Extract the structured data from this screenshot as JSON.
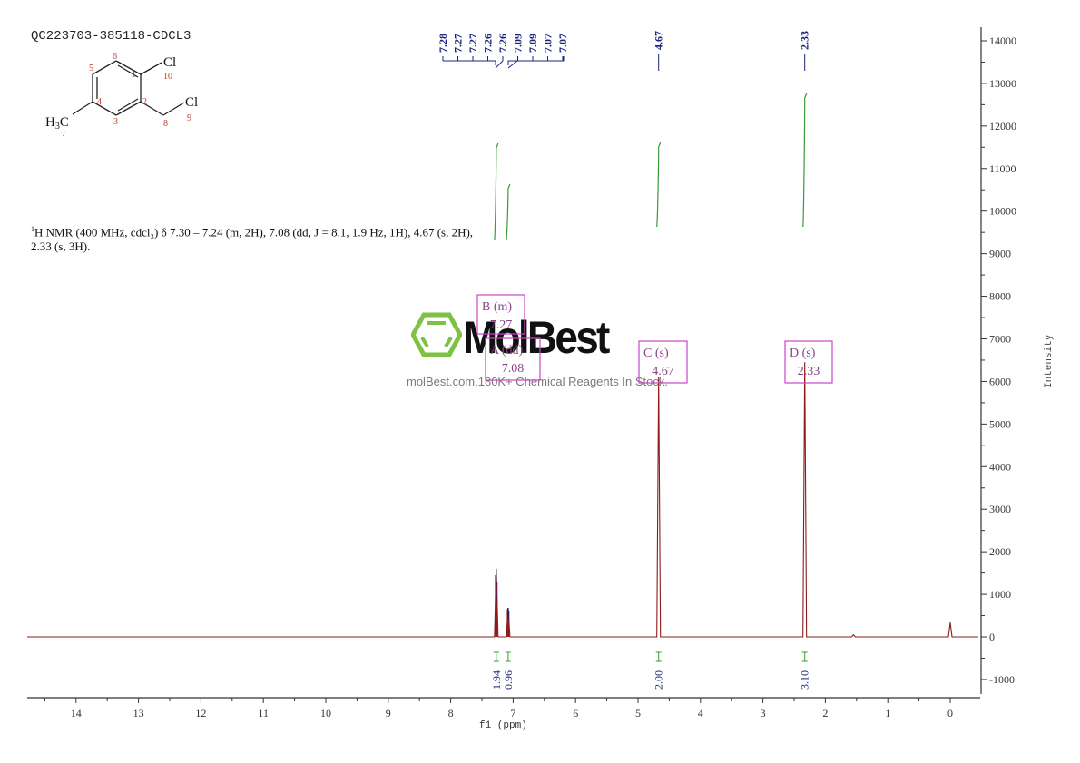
{
  "header": {
    "sample_id": "QC223703-385118-CDCL3",
    "summary_line1": "H NMR (400 MHz, cdcl₃) δ 7.30 – 7.24 (m, 2H), 7.08 (dd, J = 8.1, 1.9 Hz, 1H), 4.67 (s, 2H),",
    "summary_sup": "1",
    "summary_line2": "2.33 (s, 3H)."
  },
  "structure": {
    "atoms": [
      "1",
      "2",
      "3",
      "4",
      "5",
      "6",
      "7",
      "8",
      "9",
      "10"
    ],
    "labels": {
      "cl_top": "Cl",
      "cl_side": "Cl",
      "methyl": "H3C"
    }
  },
  "watermark": {
    "brand": "MolBest",
    "tagline": "molBest.com,180K+ Chemical Reagents In Stock."
  },
  "colors": {
    "spectrum": "#8b1a1a",
    "peak_labels": "#1a237e",
    "integral": "#3a9a3a",
    "multiplet_box": "#cc44cc",
    "axis": "#333333",
    "logo": "#7dc242"
  },
  "chart_data": {
    "type": "line",
    "title": "QC223703-385118-CDCL3",
    "xlabel": "f1 (ppm)",
    "ylabel": "Intensity",
    "xlim": [
      14.8,
      -0.5
    ],
    "ylim": [
      -1300,
      14300
    ],
    "x_ticks": [
      14,
      13,
      12,
      11,
      10,
      9,
      8,
      7,
      6,
      5,
      4,
      3,
      2,
      1,
      0
    ],
    "y_ticks": [
      14000,
      13000,
      12000,
      11000,
      10000,
      9000,
      8000,
      7000,
      6000,
      5000,
      4000,
      3000,
      2000,
      1000,
      0,
      -1000
    ],
    "grid": false,
    "peak_labels_top": {
      "aromatic_group": [
        "7.28",
        "7.27",
        "7.27",
        "7.26",
        "7.26",
        "7.09",
        "7.09",
        "7.07",
        "7.07"
      ],
      "singlets": [
        "4.67",
        "2.33"
      ]
    },
    "peaks": [
      {
        "ppm": 7.27,
        "intensity": 1600
      },
      {
        "ppm": 7.08,
        "intensity": 680
      },
      {
        "ppm": 4.67,
        "intensity": 6100
      },
      {
        "ppm": 2.33,
        "intensity": 6450
      },
      {
        "ppm": 1.55,
        "intensity": 50
      },
      {
        "ppm": 0.0,
        "intensity": 340
      }
    ],
    "multiplets": [
      {
        "label": "B (m)",
        "shift": "7.27"
      },
      {
        "label": "A (dd)",
        "shift": "7.08"
      },
      {
        "label": "C (s)",
        "shift": "4.67"
      },
      {
        "label": "D (s)",
        "shift": "2.33"
      }
    ],
    "integrals": [
      {
        "ppm": 7.27,
        "value": "1.94"
      },
      {
        "ppm": 7.08,
        "value": "0.96"
      },
      {
        "ppm": 4.67,
        "value": "2.00"
      },
      {
        "ppm": 2.33,
        "value": "3.10"
      }
    ]
  }
}
